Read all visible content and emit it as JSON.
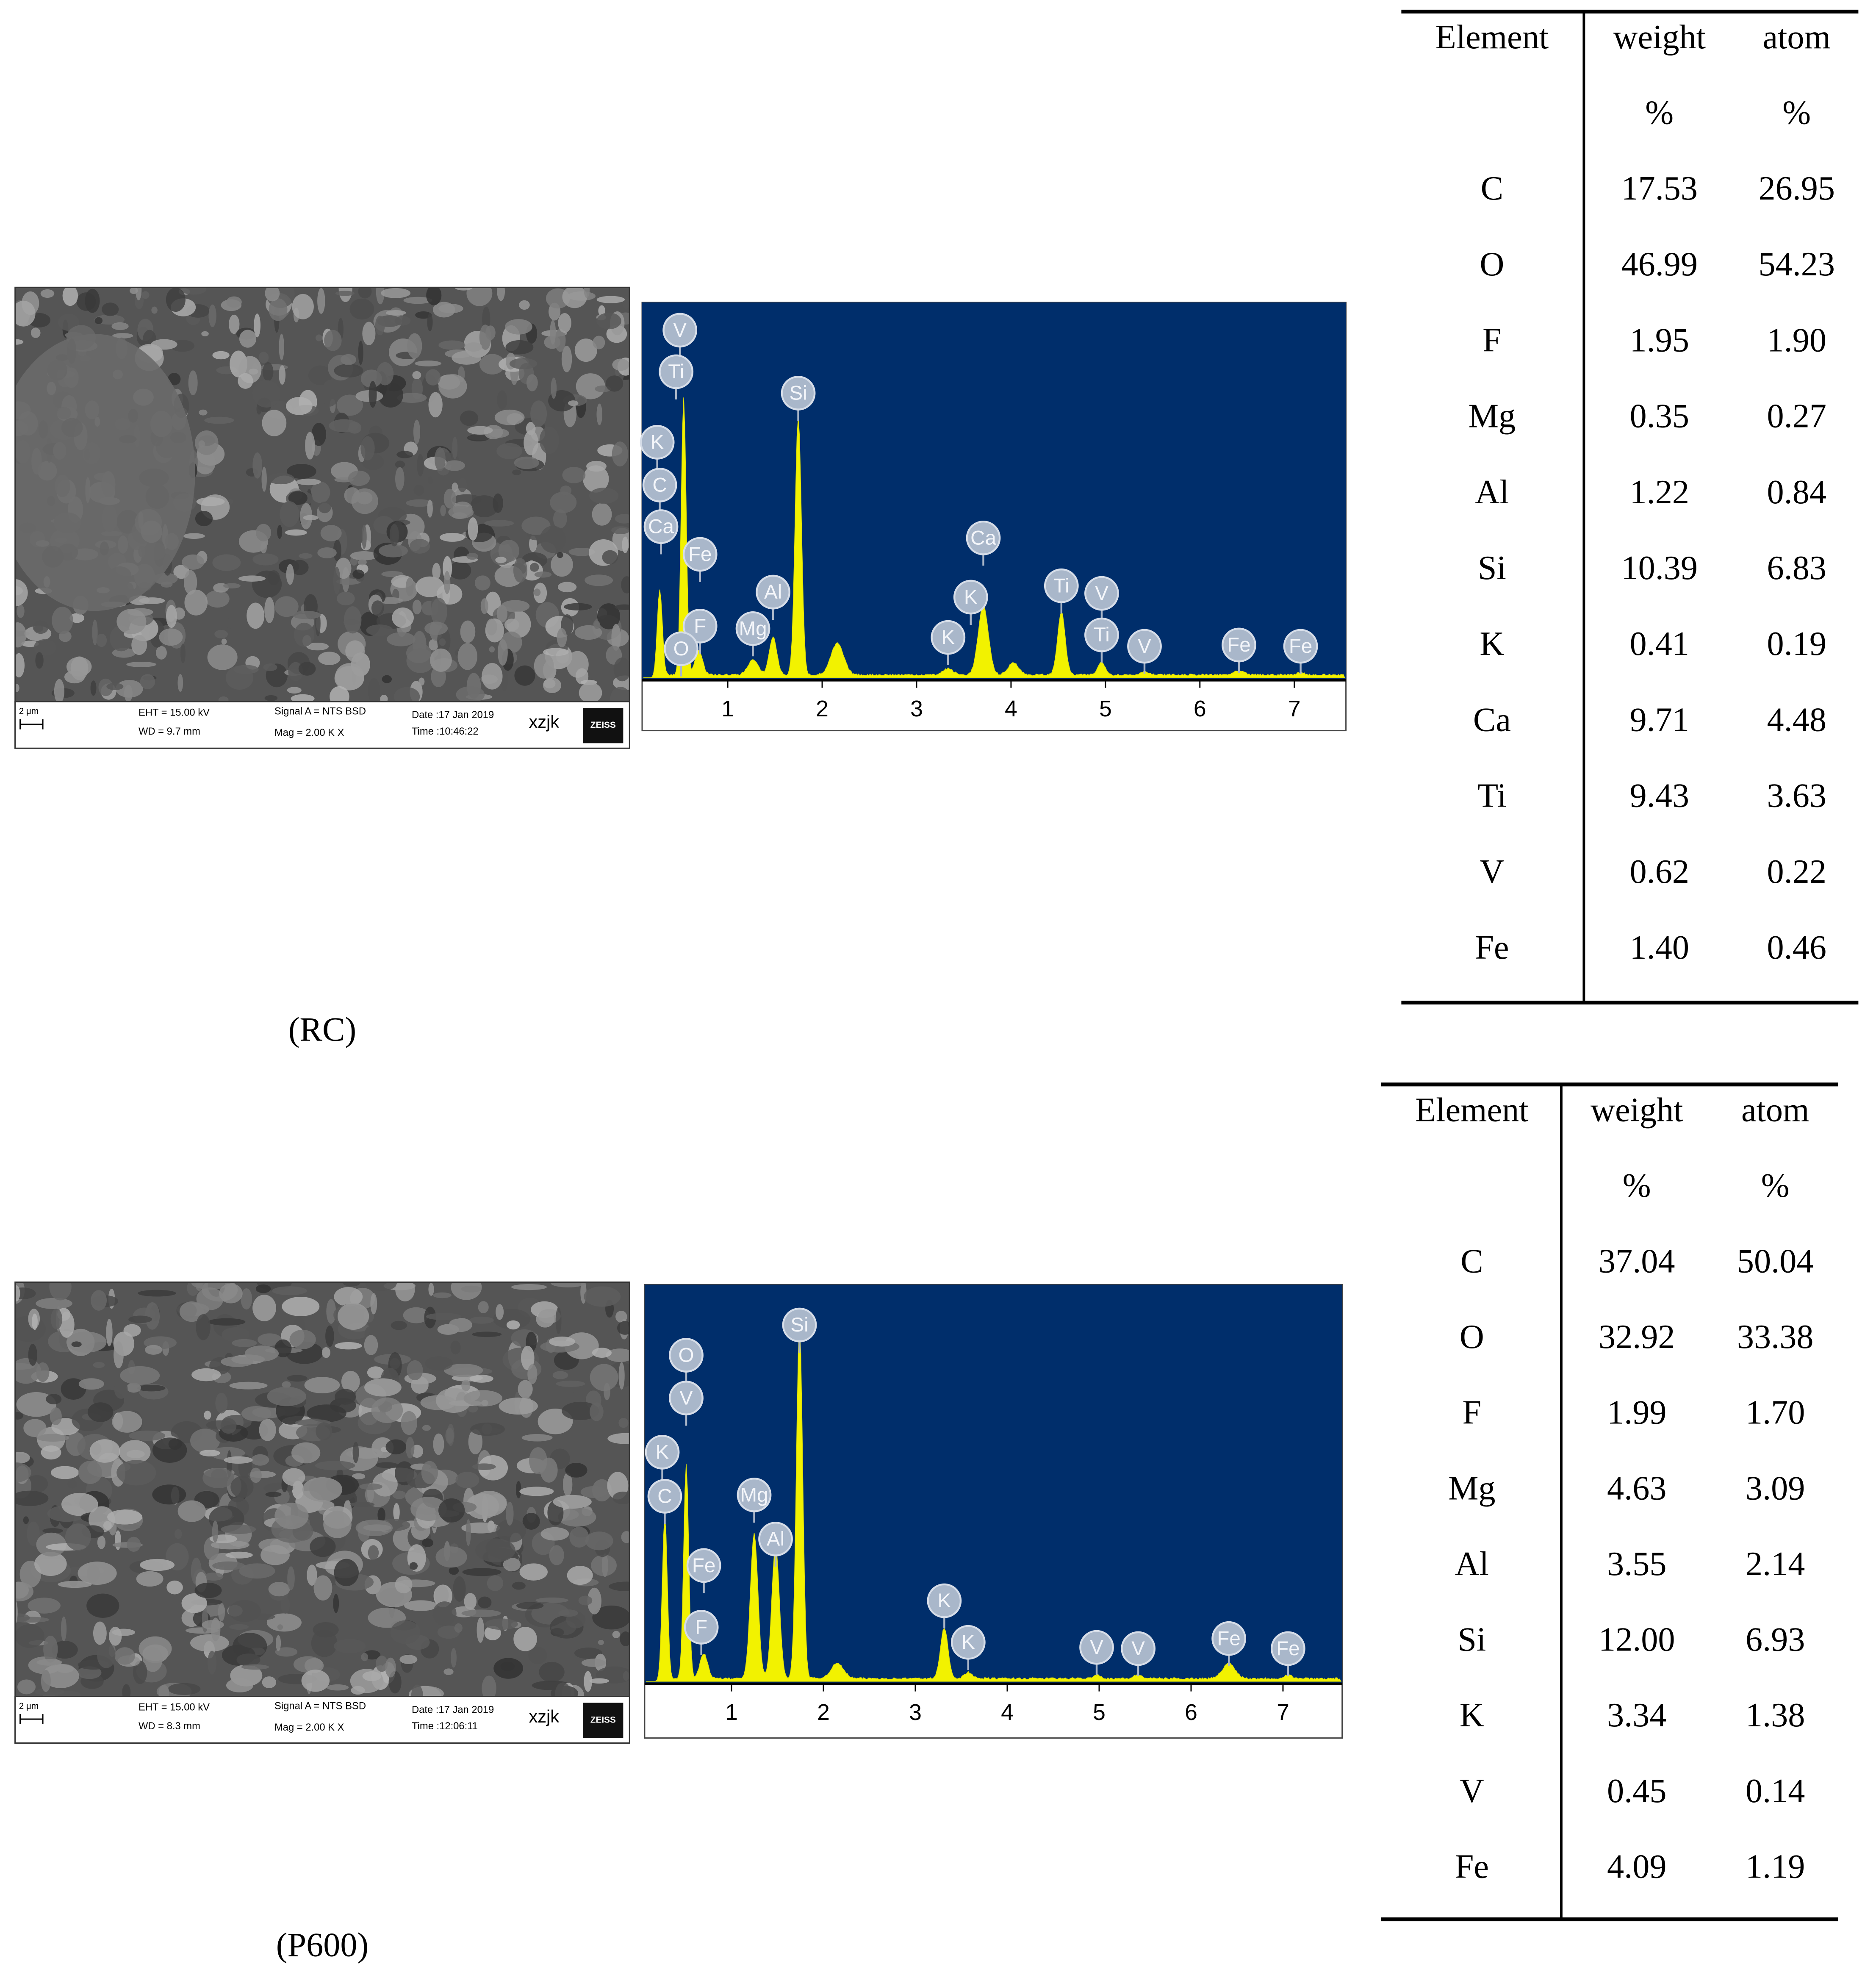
{
  "panels": [
    {
      "caption": "(RC)",
      "sem": {
        "scale": "2 μm",
        "eht": "EHT = 15.00 kV",
        "wd": "WD = 9.7 mm",
        "signal": "Signal A = NTS BSD",
        "mag": "Mag = 2.00 K X",
        "date": "Date :17 Jan 2019",
        "time": "Time :10:46:22",
        "operator": "xzjk",
        "brand": "ZEISS"
      },
      "spectrum": {
        "xticks": [
          1,
          2,
          3,
          4,
          5,
          6,
          7
        ],
        "peak_labels": [
          "V",
          "Ti",
          "K",
          "C",
          "Ca",
          "Fe",
          "F",
          "O",
          "Mg",
          "Al",
          "Si",
          "K",
          "K",
          "Ca",
          "Ti",
          "V",
          "Ti",
          "V",
          "Fe",
          "Fe"
        ]
      },
      "table": {
        "header": [
          "Element",
          "weight",
          "atom"
        ],
        "units": [
          "%",
          "%"
        ],
        "rows": [
          [
            "C",
            "17.53",
            "26.95"
          ],
          [
            "O",
            "46.99",
            "54.23"
          ],
          [
            "F",
            "1.95",
            "1.90"
          ],
          [
            "Mg",
            "0.35",
            "0.27"
          ],
          [
            "Al",
            "1.22",
            "0.84"
          ],
          [
            "Si",
            "10.39",
            "6.83"
          ],
          [
            "K",
            "0.41",
            "0.19"
          ],
          [
            "Ca",
            "9.71",
            "4.48"
          ],
          [
            "Ti",
            "9.43",
            "3.63"
          ],
          [
            "V",
            "0.62",
            "0.22"
          ],
          [
            "Fe",
            "1.40",
            "0.46"
          ]
        ]
      }
    },
    {
      "caption": "(P600)",
      "sem": {
        "scale": "2 μm",
        "eht": "EHT = 15.00 kV",
        "wd": "WD = 8.3 mm",
        "signal": "Signal A = NTS BSD",
        "mag": "Mag = 2.00 K X",
        "date": "Date :17 Jan 2019",
        "time": "Time :12:06:11",
        "operator": "xzjk",
        "brand": "ZEISS"
      },
      "spectrum": {
        "xticks": [
          1,
          2,
          3,
          4,
          5,
          6,
          7
        ],
        "peak_labels": [
          "Si",
          "O",
          "V",
          "K",
          "C",
          "Fe",
          "F",
          "Mg",
          "Al",
          "K",
          "K",
          "V",
          "V",
          "Fe",
          "Fe"
        ]
      },
      "table": {
        "header": [
          "Element",
          "weight",
          "atom"
        ],
        "units": [
          "%",
          "%"
        ],
        "rows": [
          [
            "C",
            "37.04",
            "50.04"
          ],
          [
            "O",
            "32.92",
            "33.38"
          ],
          [
            "F",
            "1.99",
            "1.70"
          ],
          [
            "Mg",
            "4.63",
            "3.09"
          ],
          [
            "Al",
            "3.55",
            "2.14"
          ],
          [
            "Si",
            "12.00",
            "6.93"
          ],
          [
            "K",
            "3.34",
            "1.38"
          ],
          [
            "V",
            "0.45",
            "0.14"
          ],
          [
            "Fe",
            "4.09",
            "1.19"
          ]
        ]
      }
    }
  ]
}
